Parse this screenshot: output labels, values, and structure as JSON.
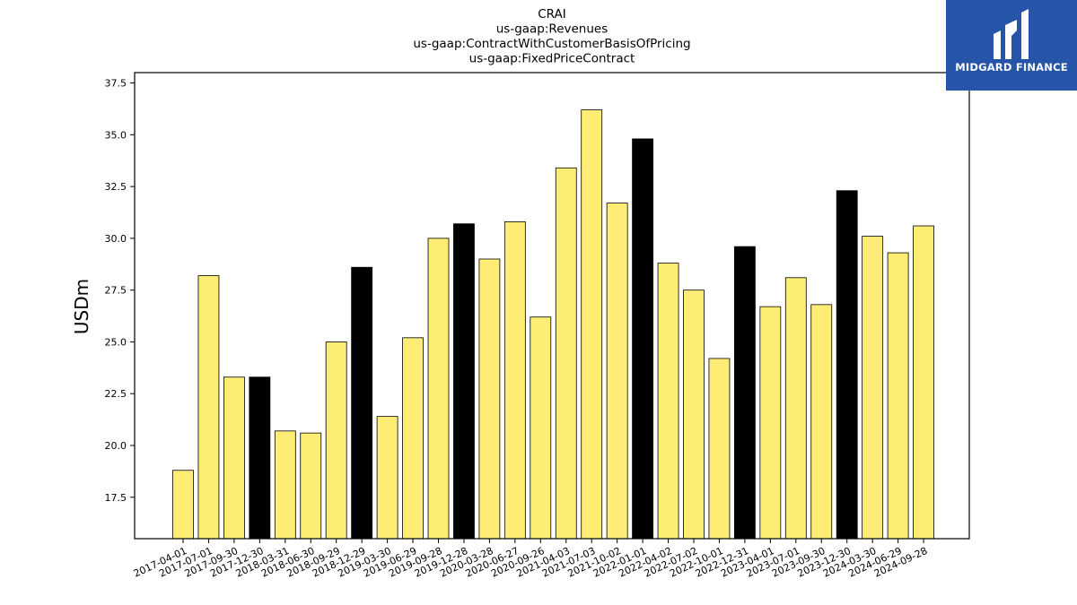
{
  "chart_data": {
    "type": "bar",
    "title_lines": [
      "CRAI",
      "us-gaap:Revenues",
      "us-gaap:ContractWithCustomerBasisOfPricing",
      "us-gaap:FixedPriceContract"
    ],
    "xlabel": "",
    "ylabel": "USDm",
    "ylim": [
      15.5,
      38.0
    ],
    "yticks": [
      17.5,
      20.0,
      22.5,
      25.0,
      27.5,
      30.0,
      32.5,
      35.0,
      37.5
    ],
    "ytick_labels": [
      "17.5",
      "20.0",
      "22.5",
      "25.0",
      "27.5",
      "30.0",
      "32.5",
      "35.0",
      "37.5"
    ],
    "categories": [
      "2017-04-01",
      "2017-07-01",
      "2017-09-30",
      "2017-12-30",
      "2018-03-31",
      "2018-06-30",
      "2018-09-29",
      "2018-12-29",
      "2019-03-30",
      "2019-06-29",
      "2019-09-28",
      "2019-12-28",
      "2020-03-28",
      "2020-06-27",
      "2020-09-26",
      "2021-04-03",
      "2021-07-03",
      "2021-10-02",
      "2022-01-01",
      "2022-04-02",
      "2022-07-02",
      "2022-10-01",
      "2022-12-31",
      "2023-04-01",
      "2023-07-01",
      "2023-09-30",
      "2023-12-30",
      "2024-03-30",
      "2024-06-29",
      "2024-09-28"
    ],
    "values": [
      18.8,
      28.2,
      23.3,
      23.3,
      20.7,
      20.6,
      25.0,
      28.6,
      21.4,
      25.2,
      30.0,
      30.7,
      29.0,
      30.8,
      26.2,
      33.4,
      36.2,
      31.7,
      34.8,
      28.8,
      27.5,
      24.2,
      29.6,
      26.7,
      28.1,
      26.8,
      32.3,
      30.1,
      29.3,
      30.6
    ],
    "highlight": [
      false,
      false,
      false,
      true,
      false,
      false,
      false,
      true,
      false,
      false,
      false,
      true,
      false,
      false,
      false,
      false,
      false,
      false,
      true,
      false,
      false,
      false,
      true,
      false,
      false,
      false,
      true,
      false,
      false,
      false
    ],
    "colors": {
      "normal": "#fded74",
      "highlight": "#000000",
      "edge": "#000000"
    },
    "grid": false,
    "legend": "none"
  },
  "logo": {
    "text": "MIDGARD FINANCE",
    "background": "#2554a8"
  }
}
